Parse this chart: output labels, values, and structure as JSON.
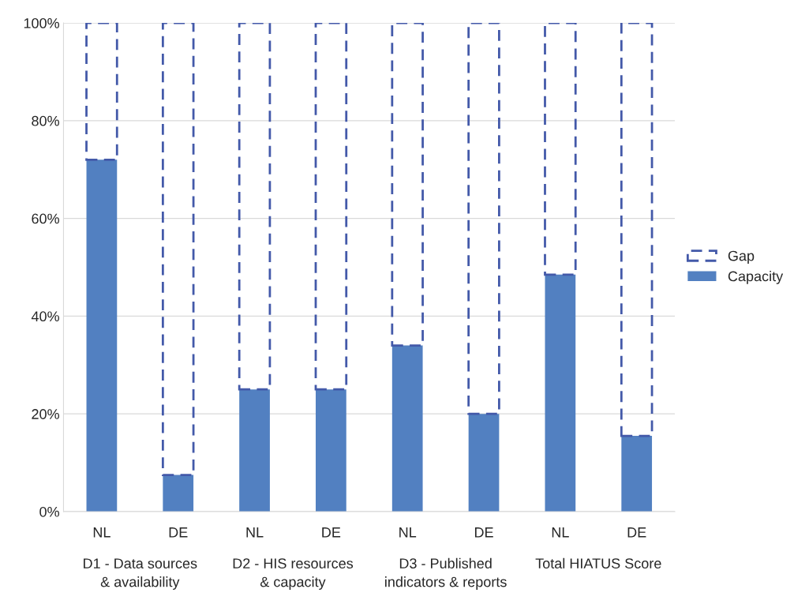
{
  "chart_data": {
    "type": "bar",
    "stacked": true,
    "categories": [
      "NL",
      "DE",
      "NL",
      "DE",
      "NL",
      "DE",
      "NL",
      "DE"
    ],
    "series": [
      {
        "name": "Capacity",
        "color": "#5280c1",
        "values": [
          72,
          7.5,
          25,
          25,
          34,
          20,
          48.5,
          15.5
        ]
      },
      {
        "name": "Gap",
        "color": "#4359a9",
        "line_style": "dashed",
        "values": [
          28,
          92.5,
          75,
          75,
          66,
          80,
          51.5,
          84.5
        ]
      }
    ],
    "annotations": [
      "D1 - Data sources & availability",
      "D2 - HIS resources & capacity",
      "D3 - Published indicators & reports",
      "Total HIATUS Score"
    ],
    "ylim": [
      0,
      100
    ],
    "yticks": [
      {
        "value": 0,
        "label": "0%"
      },
      {
        "value": 20,
        "label": "20%"
      },
      {
        "value": 40,
        "label": "40%"
      },
      {
        "value": 60,
        "label": "60%"
      },
      {
        "value": 80,
        "label": "80%"
      },
      {
        "value": 100,
        "label": "100%"
      }
    ],
    "grid": "y",
    "legend": "right"
  }
}
